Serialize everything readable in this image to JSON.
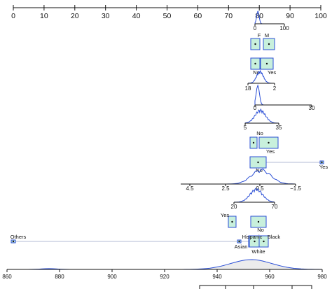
{
  "chart_data": {
    "type": "nomogram",
    "points_axis": {
      "ticks": [
        "0",
        "10",
        "20",
        "30",
        "40",
        "50",
        "60",
        "70",
        "80",
        "90",
        "100"
      ],
      "range": [
        0,
        100
      ]
    },
    "colors": {
      "box_fill": "#c8f0dc",
      "box_stroke": "#2b4fd6",
      "density": "#2b4fd6",
      "total_fill": "#ececec"
    },
    "variables": [
      {
        "type": "density",
        "ticks": [
          "0",
          "100"
        ],
        "tick_values": [
          0,
          100
        ],
        "range": [
          0,
          100
        ]
      },
      {
        "type": "categorical",
        "levels": [
          {
            "label": "F",
            "value": 0.405
          },
          {
            "label": "M",
            "value": 0.435
          }
        ]
      },
      {
        "type": "categorical",
        "levels": [
          {
            "label": "No",
            "value": 0.405
          },
          {
            "label": "Yes",
            "value": 0.435
          }
        ]
      },
      {
        "type": "density",
        "ticks": [
          "18",
          "2"
        ],
        "tick_values": [
          18,
          2
        ],
        "range": [
          18,
          2
        ]
      },
      {
        "type": "density",
        "ticks": [
          "0",
          "30"
        ],
        "tick_values": [
          0,
          30
        ],
        "range": [
          0,
          30
        ]
      },
      {
        "type": "density",
        "ticks": [
          "5",
          "35"
        ],
        "tick_values": [
          5,
          35
        ],
        "range": [
          5,
          35
        ]
      },
      {
        "type": "categorical",
        "levels": [
          {
            "label": "No",
            "value": 0.405
          },
          {
            "label": "Yes",
            "value": 0.435
          }
        ]
      },
      {
        "type": "categorical",
        "levels": [
          {
            "label": "No",
            "value": 0.405
          },
          {
            "label": "Yes",
            "value": 1.0
          }
        ]
      },
      {
        "type": "density",
        "ticks": [
          "4.5",
          "2.5",
          "0.5",
          "−1.5"
        ],
        "tick_values": [
          4.5,
          2.5,
          0.5,
          -1.5
        ],
        "range": [
          4.5,
          -1.5
        ]
      },
      {
        "type": "density",
        "ticks": [
          "20",
          "70"
        ],
        "tick_values": [
          20,
          70
        ],
        "range": [
          20,
          70
        ]
      },
      {
        "type": "categorical",
        "levels": [
          {
            "label": "Yes",
            "value": 0.36
          },
          {
            "label": "No",
            "value": 0.405
          }
        ]
      },
      {
        "type": "categorical",
        "levels": [
          {
            "label": "Others",
            "value": 0.0
          },
          {
            "label": "Asian",
            "value": 0.375
          },
          {
            "label": "Hispanic",
            "value": 0.41
          },
          {
            "label": "White",
            "value": 0.405
          },
          {
            "label": "Black",
            "value": 0.45
          }
        ]
      }
    ],
    "total_points_axis": {
      "ticks": [
        "860",
        "880",
        "900",
        "920",
        "940",
        "960",
        "980"
      ],
      "range": [
        860,
        980
      ]
    }
  }
}
